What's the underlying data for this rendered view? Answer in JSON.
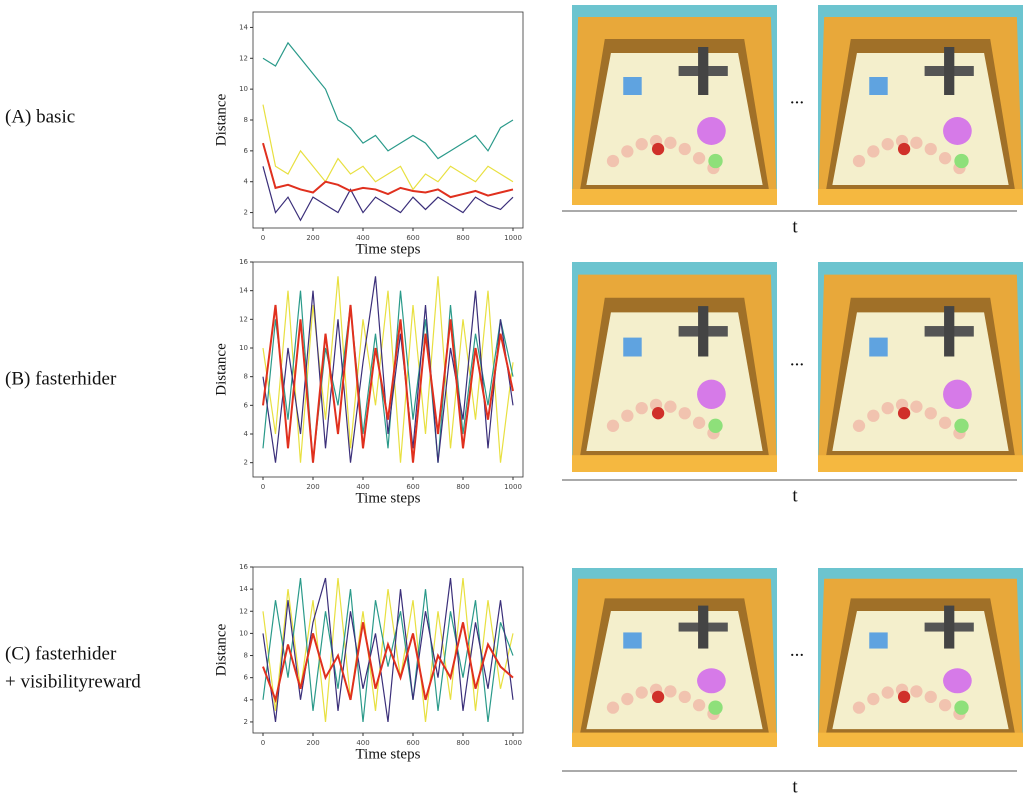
{
  "figure": {
    "rows": [
      {
        "label_lines": [
          "(A) basic"
        ],
        "ellipsis": "...",
        "time_label": "t",
        "chart": {
          "type": "line",
          "xlabel": "Time steps",
          "ylabel": "Distance",
          "x": [
            0,
            50,
            100,
            150,
            200,
            250,
            300,
            350,
            400,
            450,
            500,
            550,
            600,
            650,
            700,
            750,
            800,
            850,
            900,
            950,
            1000
          ],
          "xlim": [
            -40,
            1040
          ],
          "ylim": [
            1,
            15
          ],
          "xticks": [
            0,
            200,
            400,
            600,
            800,
            1000
          ],
          "yticks": [
            2,
            4,
            6,
            8,
            10,
            12,
            14
          ],
          "series": [
            {
              "color": "#2a9a8a",
              "values": [
                12,
                11.5,
                13,
                12,
                11,
                10,
                8,
                7.5,
                6.5,
                7,
                6,
                6.5,
                7,
                6.5,
                5.5,
                6,
                6.5,
                7,
                6,
                7.5,
                8
              ]
            },
            {
              "color": "#e8e040",
              "values": [
                9,
                5,
                4.5,
                6,
                5,
                4,
                5.5,
                4.5,
                5,
                4,
                4.5,
                5,
                3.5,
                4.5,
                4,
                5,
                4.5,
                4,
                5,
                4.5,
                4
              ]
            },
            {
              "color": "#3b2f7a",
              "values": [
                5,
                2,
                3,
                1.5,
                3,
                2.5,
                2,
                3.5,
                2,
                3,
                2.5,
                2,
                3,
                2.2,
                3,
                2.5,
                2,
                3,
                2.5,
                2.2,
                3
              ]
            },
            {
              "color": "#e0301e",
              "values": [
                6.5,
                3.6,
                3.8,
                3.5,
                3.3,
                4.0,
                3.8,
                3.4,
                3.6,
                3.5,
                3.2,
                3.6,
                3.4,
                3.3,
                3.5,
                3.0,
                3.2,
                3.4,
                3.1,
                3.3,
                3.5
              ]
            }
          ]
        }
      },
      {
        "label_lines": [
          "(B) fasterhider"
        ],
        "ellipsis": "...",
        "time_label": "t",
        "chart": {
          "type": "line",
          "xlabel": "Time steps",
          "ylabel": "Distance",
          "x": [
            0,
            50,
            100,
            150,
            200,
            250,
            300,
            350,
            400,
            450,
            500,
            550,
            600,
            650,
            700,
            750,
            800,
            850,
            900,
            950,
            1000
          ],
          "xlim": [
            -40,
            1040
          ],
          "ylim": [
            1,
            16
          ],
          "xticks": [
            0,
            200,
            400,
            600,
            800,
            1000
          ],
          "yticks": [
            2,
            4,
            6,
            8,
            10,
            12,
            14,
            16
          ],
          "series": [
            {
              "color": "#e8e040",
              "values": [
                10,
                4,
                14,
                2,
                13,
                5,
                15,
                3,
                12,
                6,
                14,
                2,
                13,
                4,
                15,
                3,
                12,
                5,
                14,
                2,
                9
              ]
            },
            {
              "color": "#2a9a8a",
              "values": [
                3,
                12,
                5,
                14,
                2,
                10,
                6,
                13,
                4,
                11,
                3,
                14,
                5,
                12,
                2,
                13,
                4,
                11,
                6,
                12,
                8
              ]
            },
            {
              "color": "#3b2f7a",
              "values": [
                8,
                2,
                10,
                4,
                14,
                3,
                12,
                2,
                9,
                15,
                4,
                11,
                3,
                13,
                2,
                10,
                5,
                14,
                3,
                12,
                6
              ]
            },
            {
              "color": "#e0301e",
              "values": [
                6,
                13,
                3,
                12,
                2,
                11,
                4,
                13,
                3,
                10,
                5,
                12,
                2,
                11,
                4,
                12,
                3,
                10,
                5,
                11,
                7
              ]
            }
          ]
        }
      },
      {
        "label_lines": [
          "(C) fasterhider",
          "+ visibilityreward"
        ],
        "ellipsis": "...",
        "time_label": "t",
        "chart": {
          "type": "line",
          "xlabel": "Time steps",
          "ylabel": "Distance",
          "x": [
            0,
            50,
            100,
            150,
            200,
            250,
            300,
            350,
            400,
            450,
            500,
            550,
            600,
            650,
            700,
            750,
            800,
            850,
            900,
            950,
            1000
          ],
          "xlim": [
            -40,
            1040
          ],
          "ylim": [
            1,
            16
          ],
          "xticks": [
            0,
            200,
            400,
            600,
            800,
            1000
          ],
          "yticks": [
            2,
            4,
            6,
            8,
            10,
            12,
            14,
            16
          ],
          "series": [
            {
              "color": "#e8e040",
              "values": [
                12,
                3,
                14,
                5,
                13,
                2,
                15,
                4,
                12,
                3,
                14,
                6,
                13,
                2,
                12,
                4,
                15,
                3,
                13,
                5,
                10
              ]
            },
            {
              "color": "#2a9a8a",
              "values": [
                4,
                13,
                6,
                15,
                3,
                12,
                5,
                14,
                2,
                13,
                7,
                12,
                4,
                14,
                3,
                12,
                6,
                13,
                2,
                11,
                8
              ]
            },
            {
              "color": "#3b2f7a",
              "values": [
                10,
                2,
                13,
                4,
                11,
                15,
                3,
                12,
                5,
                10,
                2,
                14,
                4,
                12,
                6,
                15,
                3,
                11,
                5,
                13,
                4
              ]
            },
            {
              "color": "#e0301e",
              "values": [
                7,
                4,
                9,
                5,
                10,
                6,
                8,
                4,
                11,
                5,
                9,
                6,
                10,
                4,
                8,
                6,
                11,
                5,
                9,
                7,
                6
              ]
            }
          ]
        }
      }
    ]
  }
}
